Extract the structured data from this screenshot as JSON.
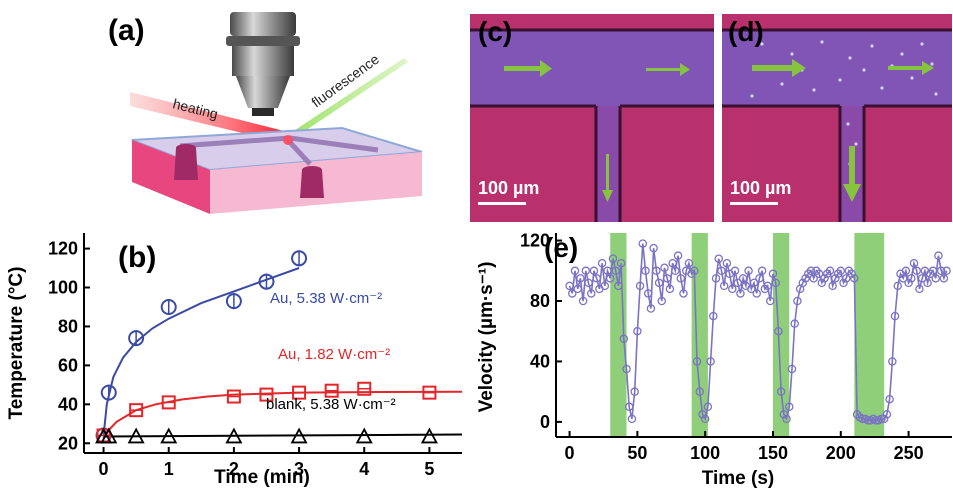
{
  "panels": {
    "a": {
      "label": "(a)",
      "heating_label": "heating",
      "fluorescence_label": "fluorescence"
    },
    "b": {
      "label": "(b)"
    },
    "c": {
      "label": "(c)",
      "scalebar": "100 µm"
    },
    "d": {
      "label": "(d)",
      "scalebar": "100 µm"
    },
    "e": {
      "label": "(e)"
    }
  },
  "colors": {
    "blue": "#3a4aa5",
    "red": "#e2262a",
    "black": "#000000",
    "trace": "#7b73c4",
    "green_band": "#8fcf7a",
    "arrow": "#86c440",
    "chip_magenta": "#b0306a",
    "photo_bg": "#b8306c"
  },
  "chart_data": [
    {
      "type": "scatter",
      "panel": "b",
      "xlabel": "Time (min)",
      "ylabel": "Temperature (°C)",
      "xlim": [
        -0.3,
        5.5
      ],
      "ylim": [
        15,
        128
      ],
      "xticks": [
        0,
        1,
        2,
        3,
        4,
        5
      ],
      "yticks": [
        20,
        40,
        60,
        80,
        100,
        120
      ],
      "grid": false,
      "series": [
        {
          "name": "Au, 5.38 W·cm⁻²",
          "color": "#3a4aa5",
          "marker": "circle",
          "x": [
            0,
            0.08,
            0.5,
            1,
            2,
            2.5,
            3
          ],
          "y": [
            24,
            46,
            74,
            90,
            93,
            103,
            115
          ],
          "fit": [
            [
              0,
              24
            ],
            [
              0.05,
              40
            ],
            [
              0.15,
              54
            ],
            [
              0.3,
              64
            ],
            [
              0.5,
              72
            ],
            [
              0.75,
              79
            ],
            [
              1,
              84
            ],
            [
              1.5,
              92
            ],
            [
              2,
              98
            ],
            [
              2.5,
              104
            ],
            [
              3,
              110
            ]
          ]
        },
        {
          "name": "Au, 1.82 W·cm⁻²",
          "color": "#e2262a",
          "marker": "square",
          "x": [
            0,
            0.5,
            1,
            2,
            2.5,
            3,
            3.5,
            4,
            5
          ],
          "y": [
            24,
            37,
            41,
            44,
            45,
            46,
            47,
            48,
            46
          ],
          "fit": [
            [
              0,
              24
            ],
            [
              0.2,
              31
            ],
            [
              0.5,
              37
            ],
            [
              0.8,
              40
            ],
            [
              1.2,
              42.5
            ],
            [
              1.6,
              44
            ],
            [
              2,
              45
            ],
            [
              3,
              46
            ],
            [
              4,
              46.3
            ],
            [
              5.5,
              46.5
            ]
          ]
        },
        {
          "name": "blank, 5.38 W·cm⁻²",
          "color": "#000000",
          "marker": "triangle",
          "x": [
            0,
            0.08,
            0.5,
            1,
            2,
            3,
            4,
            5
          ],
          "y": [
            23,
            23,
            23,
            23,
            23,
            23,
            23,
            23
          ],
          "fit": [
            [
              0,
              23.5
            ],
            [
              5.5,
              24.5
            ]
          ]
        }
      ]
    },
    {
      "type": "line",
      "panel": "e",
      "xlabel": "Time (s)",
      "ylabel": "Velocity (µm·s⁻¹)",
      "xlim": [
        -10,
        282
      ],
      "ylim": [
        -10,
        125
      ],
      "xticks": [
        0,
        50,
        100,
        150,
        200,
        250
      ],
      "yticks": [
        0,
        40,
        80,
        120
      ],
      "grid": false,
      "shaded_x_ranges": [
        [
          30,
          42
        ],
        [
          90,
          102
        ],
        [
          150,
          162
        ],
        [
          210,
          232
        ]
      ],
      "series": [
        {
          "name": "",
          "color": "#7b73c4",
          "marker": "circle",
          "x": [
            0,
            2,
            4,
            6,
            8,
            10,
            12,
            14,
            16,
            18,
            20,
            22,
            24,
            26,
            28,
            30,
            32,
            34,
            36,
            38,
            40,
            42,
            44,
            46,
            48,
            50,
            52,
            54,
            56,
            58,
            60,
            62,
            64,
            66,
            68,
            70,
            72,
            74,
            76,
            78,
            80,
            82,
            84,
            86,
            88,
            90,
            92,
            94,
            96,
            98,
            100,
            102,
            104,
            106,
            108,
            110,
            112,
            114,
            116,
            118,
            120,
            122,
            124,
            126,
            128,
            130,
            132,
            134,
            136,
            138,
            140,
            142,
            144,
            146,
            148,
            150,
            152,
            154,
            156,
            158,
            160,
            162,
            164,
            166,
            168,
            170,
            172,
            174,
            176,
            178,
            180,
            182,
            184,
            186,
            188,
            190,
            192,
            194,
            196,
            198,
            200,
            202,
            204,
            206,
            208,
            210,
            212,
            214,
            216,
            218,
            220,
            222,
            224,
            226,
            228,
            230,
            232,
            234,
            236,
            238,
            240,
            242,
            244,
            246,
            248,
            250,
            252,
            254,
            256,
            258,
            260,
            262,
            264,
            266,
            268,
            270,
            272,
            274,
            276,
            278
          ],
          "y": [
            90,
            85,
            100,
            88,
            95,
            80,
            100,
            92,
            85,
            100,
            95,
            88,
            105,
            90,
            100,
            95,
            108,
            100,
            90,
            105,
            55,
            35,
            10,
            2,
            20,
            60,
            90,
            118,
            100,
            85,
            75,
            115,
            100,
            92,
            80,
            102,
            95,
            88,
            105,
            100,
            110,
            95,
            85,
            100,
            105,
            98,
            100,
            40,
            20,
            5,
            2,
            10,
            40,
            70,
            95,
            108,
            100,
            90,
            105,
            98,
            88,
            100,
            92,
            85,
            95,
            90,
            100,
            88,
            92,
            85,
            95,
            100,
            88,
            90,
            80,
            98,
            92,
            60,
            20,
            5,
            2,
            10,
            35,
            65,
            80,
            88,
            92,
            95,
            98,
            100,
            95,
            100,
            98,
            92,
            95,
            98,
            100,
            90,
            95,
            98,
            100,
            92,
            95,
            100,
            98,
            95,
            5,
            3,
            2,
            2,
            1,
            1,
            2,
            1,
            1,
            2,
            2,
            5,
            15,
            40,
            70,
            90,
            98,
            95,
            100,
            92,
            95,
            105,
            100,
            88,
            95,
            100,
            92,
            98,
            100,
            95,
            110,
            100,
            95,
            100
          ]
        }
      ]
    }
  ]
}
